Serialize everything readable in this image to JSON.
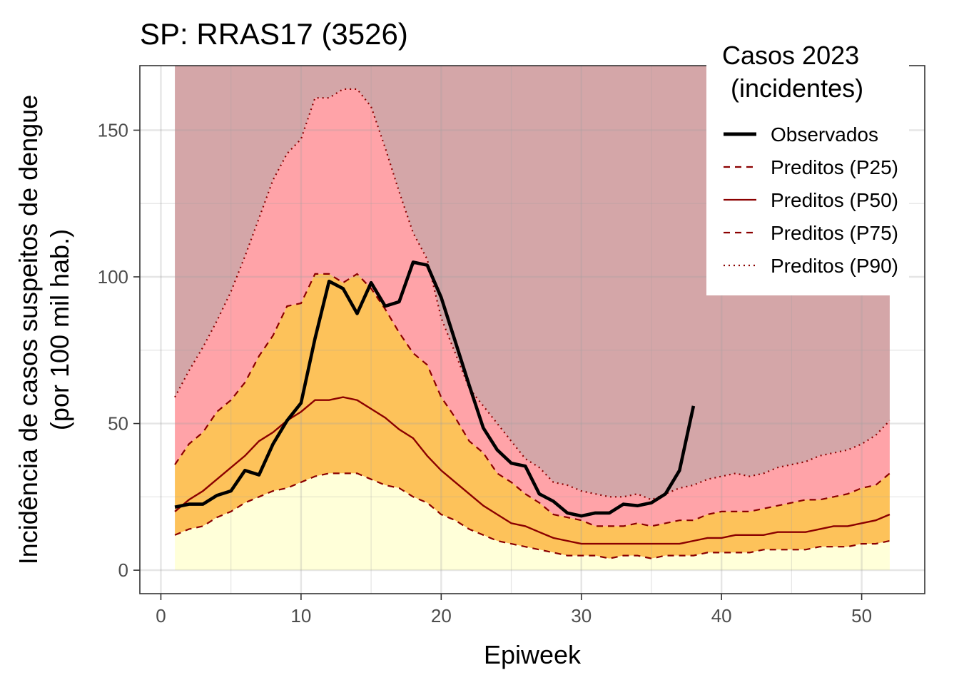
{
  "chart_data": {
    "type": "line",
    "title": "SP: RRAS17 (3526)",
    "xlabel": "Epiweek",
    "ylabel_lines": [
      "Incidência de casos suspeitos de dengue",
      "(por 100 mil hab.)"
    ],
    "xlim": [
      -1.5,
      54.5
    ],
    "ylim": [
      -8,
      172
    ],
    "x_ticks": [
      0,
      10,
      20,
      30,
      40,
      50
    ],
    "y_ticks": [
      0,
      50,
      100,
      150
    ],
    "grid": true,
    "legend": {
      "title_lines": [
        "Casos 2023",
        "(incidentes)"
      ],
      "position": "top-right",
      "entries": [
        {
          "label": "Observados",
          "style": "solid-thick",
          "color": "#000000"
        },
        {
          "label": "Preditos (P25)",
          "style": "dashed",
          "color": "#8B0000"
        },
        {
          "label": "Preditos (P50)",
          "style": "solid",
          "color": "#8B0000"
        },
        {
          "label": "Preditos (P75)",
          "style": "dashed",
          "color": "#8B0000"
        },
        {
          "label": "Preditos (P90)",
          "style": "dotted",
          "color": "#8B0000"
        }
      ]
    },
    "band_colors": {
      "below_p25": "#FFFFD9",
      "p25_p75": "#FDC25A",
      "p75_p90": "#FFA3A8",
      "above_p90": "#D4A6A8"
    },
    "band_top": 172,
    "x": [
      1,
      2,
      3,
      4,
      5,
      6,
      7,
      8,
      9,
      10,
      11,
      12,
      13,
      14,
      15,
      16,
      17,
      18,
      19,
      20,
      21,
      22,
      23,
      24,
      25,
      26,
      27,
      28,
      29,
      30,
      31,
      32,
      33,
      34,
      35,
      36,
      37,
      38,
      39,
      40,
      41,
      42,
      43,
      44,
      45,
      46,
      47,
      48,
      49,
      50,
      51,
      52
    ],
    "series": [
      {
        "name": "Preditos (P25)",
        "values": [
          12,
          14,
          15,
          18,
          20,
          23,
          25,
          27,
          28,
          30,
          32,
          33,
          33,
          33,
          31,
          29,
          28,
          25,
          23,
          19,
          17,
          14,
          12,
          10,
          9,
          8,
          7,
          6,
          5,
          5,
          5,
          4,
          5,
          5,
          4,
          5,
          5,
          5,
          6,
          6,
          6,
          6,
          7,
          7,
          7,
          7,
          8,
          8,
          8,
          9,
          9,
          10
        ]
      },
      {
        "name": "Preditos (P50)",
        "values": [
          20,
          24,
          27,
          31,
          35,
          39,
          44,
          47,
          51,
          54,
          58,
          58,
          59,
          58,
          55,
          52,
          48,
          45,
          39,
          34,
          30,
          26,
          22,
          19,
          16,
          15,
          13,
          11,
          10,
          9,
          9,
          9,
          9,
          9,
          9,
          9,
          9,
          10,
          11,
          11,
          12,
          12,
          12,
          13,
          13,
          13,
          14,
          15,
          15,
          16,
          17,
          19
        ]
      },
      {
        "name": "Preditos (P75)",
        "values": [
          36,
          43,
          47,
          54,
          58,
          64,
          73,
          80,
          90,
          91,
          101,
          101,
          98,
          101,
          96,
          89,
          81,
          74,
          70,
          59,
          52,
          44,
          40,
          33,
          30,
          26,
          23,
          19,
          18,
          17,
          15,
          15,
          15,
          16,
          15,
          16,
          17,
          17,
          19,
          20,
          20,
          20,
          21,
          22,
          23,
          24,
          24,
          25,
          26,
          28,
          29,
          33
        ]
      },
      {
        "name": "Preditos (P90)",
        "values": [
          59,
          68,
          76,
          85,
          95,
          107,
          120,
          133,
          142,
          147,
          161,
          161,
          164,
          164,
          158,
          144,
          129,
          115,
          106,
          86,
          74,
          62,
          56,
          50,
          44,
          38,
          35,
          30,
          29,
          27,
          26,
          25,
          25,
          26,
          24,
          26,
          28,
          29,
          31,
          32,
          33,
          32,
          33,
          35,
          36,
          37,
          39,
          40,
          41,
          43,
          46,
          51
        ]
      },
      {
        "name": "Observados",
        "x": [
          1,
          2,
          3,
          4,
          5,
          6,
          7,
          8,
          9,
          10,
          11,
          12,
          13,
          14,
          15,
          16,
          17,
          18,
          19,
          20,
          21,
          22,
          23,
          24,
          25,
          26,
          27,
          28,
          29,
          30,
          31,
          32,
          33,
          34,
          35,
          36,
          37,
          38
        ],
        "values": [
          21.5,
          22.5,
          22.5,
          25.5,
          27,
          34,
          32.5,
          43,
          51,
          57,
          79,
          98.5,
          96,
          87.5,
          98,
          90,
          91.5,
          105,
          104,
          93,
          78,
          63,
          48.5,
          41,
          36.5,
          35.5,
          26,
          23.5,
          19.5,
          18.5,
          19.5,
          19.5,
          22.5,
          22,
          23,
          26,
          34,
          56
        ]
      }
    ]
  }
}
